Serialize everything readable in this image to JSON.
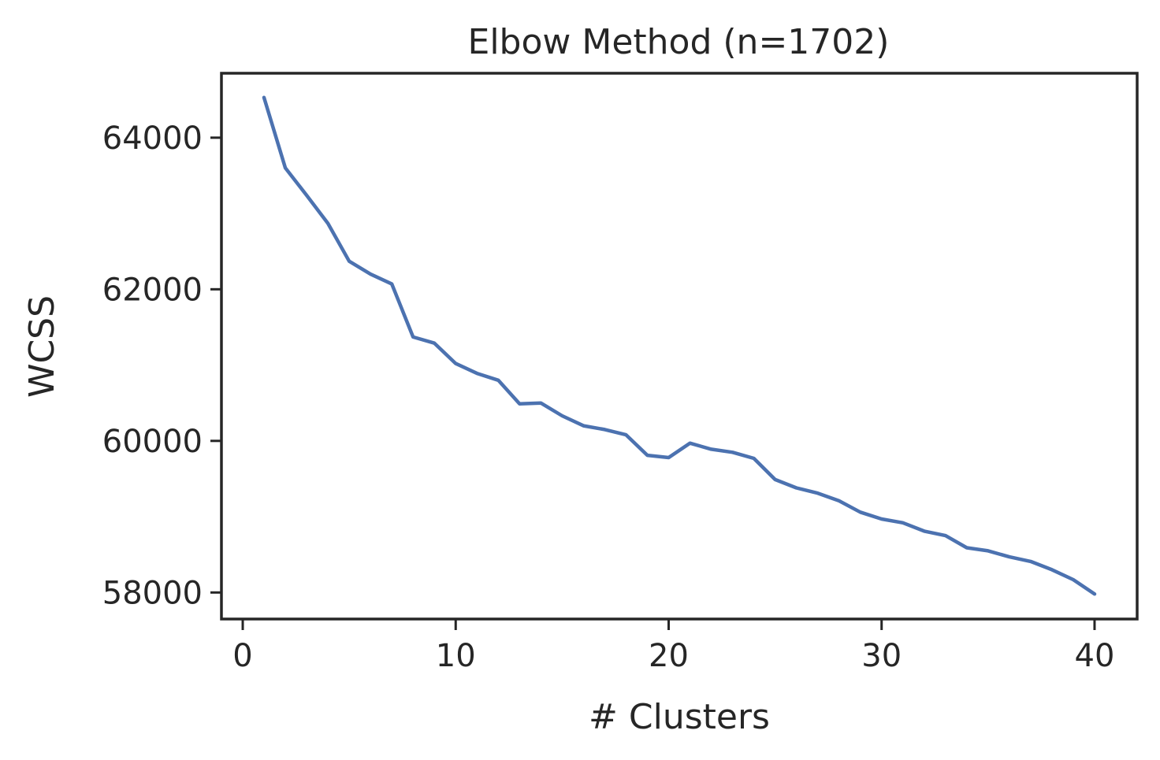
{
  "chart_data": {
    "type": "line",
    "title": "Elbow Method (n=1702)",
    "xlabel": "# Clusters",
    "ylabel": "WCSS",
    "xlim": [
      -1,
      42
    ],
    "ylim": [
      57650,
      64850
    ],
    "xticks": [
      0,
      10,
      20,
      30,
      40
    ],
    "yticks": [
      58000,
      60000,
      62000,
      64000
    ],
    "grid": false,
    "line_color": "#4c72b0",
    "series": [
      {
        "x": [
          1,
          2,
          3,
          4,
          5,
          6,
          7,
          8,
          9,
          10,
          11,
          12,
          13,
          14,
          15,
          16,
          17,
          18,
          19,
          20,
          21,
          22,
          23,
          24,
          25,
          26,
          27,
          28,
          29,
          30,
          31,
          32,
          33,
          34,
          35,
          36,
          37,
          38,
          39,
          40
        ],
        "values": [
          64530,
          63600,
          63240,
          62870,
          62370,
          62200,
          62070,
          61370,
          61290,
          61020,
          60890,
          60800,
          60490,
          60500,
          60330,
          60200,
          60150,
          60080,
          59810,
          59780,
          59970,
          59890,
          59850,
          59770,
          59490,
          59380,
          59310,
          59210,
          59060,
          58970,
          58920,
          58810,
          58750,
          58590,
          58550,
          58470,
          58410,
          58300,
          58170,
          57980
        ]
      }
    ]
  }
}
